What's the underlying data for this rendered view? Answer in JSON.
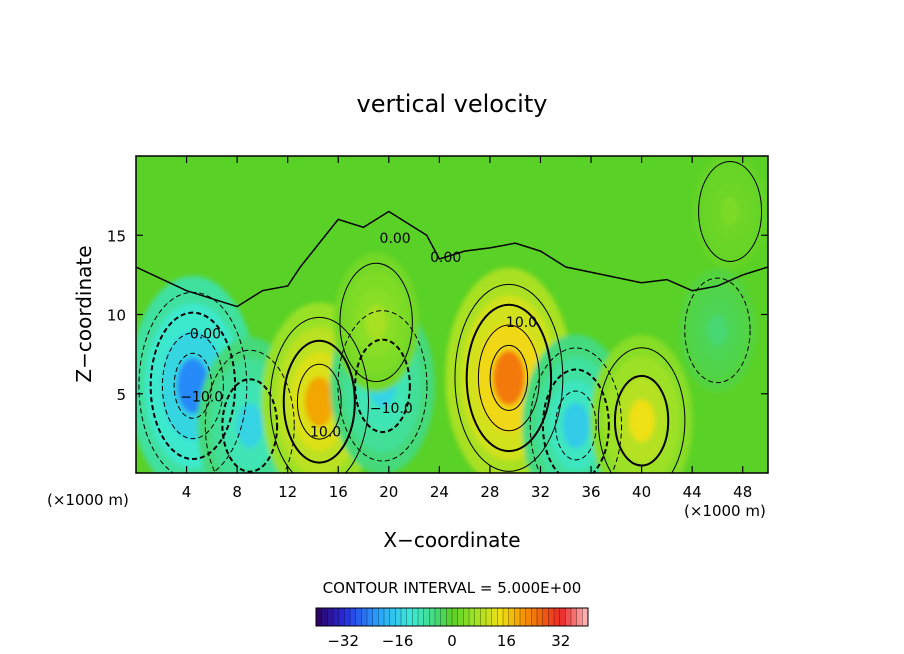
{
  "chart_data": {
    "type": "heatmap",
    "title": "vertical velocity",
    "xlabel": "X−coordinate",
    "ylabel": "Z−coordinate",
    "x_unit": "(×1000 m)",
    "x_unit_right": "(×1000 m)",
    "xlim": [
      0,
      50
    ],
    "ylim": [
      0,
      20
    ],
    "x_ticks": [
      4,
      8,
      12,
      16,
      20,
      24,
      28,
      32,
      36,
      40,
      44,
      48
    ],
    "x_tick_labels": [
      "4",
      "8",
      "12",
      "16",
      "20",
      "24",
      "28",
      "32",
      "36",
      "40",
      "44",
      "48"
    ],
    "y_ticks": [
      5,
      10,
      15
    ],
    "y_tick_labels": [
      "5",
      "10",
      "15"
    ],
    "contour_interval_text": "CONTOUR INTERVAL = 5.000E+00",
    "contour_labels": [
      {
        "text": "0.00",
        "x": 5.5,
        "z": 8.5
      },
      {
        "text": "0.00",
        "x": 20.5,
        "z": 14.5
      },
      {
        "text": "0.00",
        "x": 24.5,
        "z": 13.3
      },
      {
        "text": "−10.0",
        "x": 5.2,
        "z": 4.5
      },
      {
        "text": "10.0",
        "x": 15.0,
        "z": 2.3
      },
      {
        "text": "−10.0",
        "x": 20.2,
        "z": 3.8
      },
      {
        "text": "10.0",
        "x": 30.5,
        "z": 9.2
      }
    ],
    "field_extrema": [
      {
        "x": 4.5,
        "z": 5.5,
        "value": -22
      },
      {
        "x": 9.0,
        "z": 3.0,
        "value": -14
      },
      {
        "x": 14.5,
        "z": 4.5,
        "value": 18
      },
      {
        "x": 19.5,
        "z": 5.5,
        "value": -14
      },
      {
        "x": 29.5,
        "z": 6.0,
        "value": 22
      },
      {
        "x": 34.8,
        "z": 3.0,
        "value": -15
      },
      {
        "x": 40.0,
        "z": 3.3,
        "value": 13
      },
      {
        "x": 46.0,
        "z": 9.0,
        "value": -4
      },
      {
        "x": 19.0,
        "z": 9.5,
        "value": 7
      },
      {
        "x": 47.0,
        "z": 16.5,
        "value": 3
      }
    ],
    "colorbar": {
      "ticks": [
        -32,
        -16,
        0,
        16,
        32
      ],
      "tick_labels": [
        "−32",
        "−16",
        "0",
        "16",
        "32"
      ],
      "range": [
        -40,
        40
      ]
    }
  }
}
